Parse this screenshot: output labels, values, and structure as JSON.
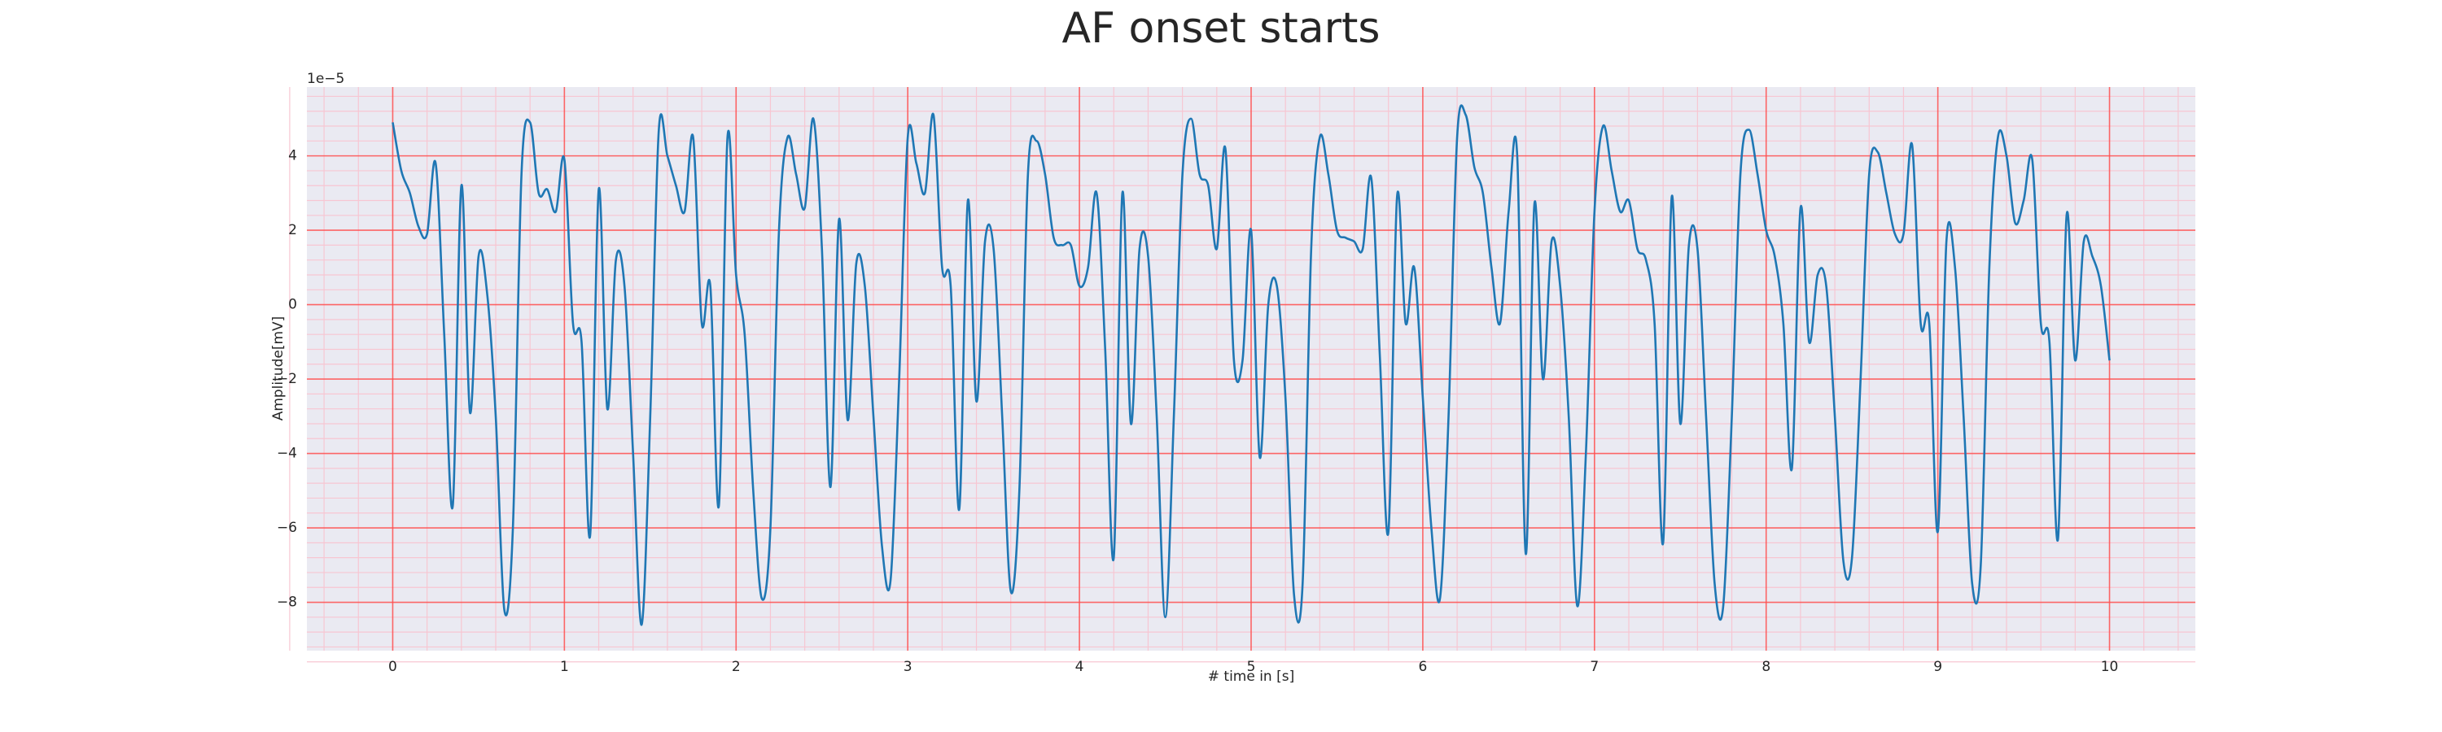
{
  "chart_data": {
    "type": "line",
    "title": "AF onset starts",
    "xlabel": "# time in [s]",
    "ylabel": "Amplitude[mV]",
    "y_offset_label": "1e−5",
    "x": [
      0,
      0.05,
      0.1,
      0.15,
      0.2,
      0.25,
      0.3,
      0.35,
      0.4,
      0.45,
      0.5,
      0.55,
      0.6,
      0.65,
      0.7,
      0.75,
      0.8,
      0.85,
      0.9,
      0.95,
      1,
      1.05,
      1.1,
      1.15,
      1.2,
      1.25,
      1.3,
      1.35,
      1.4,
      1.45,
      1.5,
      1.55,
      1.6,
      1.65,
      1.7,
      1.75,
      1.8,
      1.85,
      1.9,
      1.95,
      2,
      2.05,
      2.1,
      2.15,
      2.2,
      2.25,
      2.3,
      2.35,
      2.4,
      2.45,
      2.5,
      2.55,
      2.6,
      2.65,
      2.7,
      2.75,
      2.8,
      2.85,
      2.9,
      2.95,
      3,
      3.05,
      3.1,
      3.15,
      3.2,
      3.25,
      3.3,
      3.35,
      3.4,
      3.45,
      3.5,
      3.55,
      3.6,
      3.65,
      3.7,
      3.75,
      3.8,
      3.85,
      3.9,
      3.95,
      4,
      4.05,
      4.1,
      4.15,
      4.2,
      4.25,
      4.3,
      4.35,
      4.4,
      4.45,
      4.5,
      4.55,
      4.6,
      4.65,
      4.7,
      4.75,
      4.8,
      4.85,
      4.9,
      4.95,
      5,
      5.05,
      5.1,
      5.15,
      5.2,
      5.25,
      5.3,
      5.35,
      5.4,
      5.45,
      5.5,
      5.55,
      5.6,
      5.65,
      5.7,
      5.75,
      5.8,
      5.85,
      5.9,
      5.95,
      6,
      6.05,
      6.1,
      6.15,
      6.2,
      6.25,
      6.3,
      6.35,
      6.4,
      6.45,
      6.5,
      6.55,
      6.6,
      6.65,
      6.7,
      6.75,
      6.8,
      6.85,
      6.9,
      6.95,
      7,
      7.05,
      7.1,
      7.15,
      7.2,
      7.25,
      7.3,
      7.35,
      7.4,
      7.45,
      7.5,
      7.55,
      7.6,
      7.65,
      7.7,
      7.75,
      7.8,
      7.85,
      7.9,
      7.95,
      8,
      8.05,
      8.1,
      8.15,
      8.2,
      8.25,
      8.3,
      8.35,
      8.4,
      8.45,
      8.5,
      8.55,
      8.6,
      8.65,
      8.7,
      8.75,
      8.8,
      8.85,
      8.9,
      8.95,
      9,
      9.05,
      9.1,
      9.15,
      9.2,
      9.25,
      9.3,
      9.35,
      9.4,
      9.45,
      9.5,
      9.55,
      9.6,
      9.65,
      9.7,
      9.75,
      9.8,
      9.85,
      9.9,
      9.95,
      10
    ],
    "values": [
      4.9,
      3.6,
      3.0,
      2.1,
      1.9,
      3.8,
      -0.8,
      -5.4,
      3.2,
      -2.9,
      1.3,
      0.3,
      -3.0,
      -8.2,
      -6.0,
      3.5,
      4.9,
      3.0,
      3.1,
      2.5,
      3.9,
      -0.5,
      -1.0,
      -6.2,
      3.1,
      -2.8,
      1.2,
      0.5,
      -4.0,
      -8.6,
      -3.0,
      4.7,
      4.0,
      3.2,
      2.5,
      4.5,
      -0.5,
      0.5,
      -5.4,
      4.5,
      0.8,
      -0.8,
      -5.0,
      -7.9,
      -6.0,
      2.0,
      4.5,
      3.5,
      2.6,
      5.0,
      1.5,
      -4.9,
      2.3,
      -3.1,
      1.1,
      0.5,
      -3.0,
      -6.5,
      -7.4,
      -2.0,
      4.5,
      3.8,
      3.0,
      5.1,
      1.0,
      0.5,
      -5.5,
      2.8,
      -2.6,
      1.7,
      1.5,
      -3.0,
      -7.7,
      -5.0,
      3.5,
      4.4,
      3.5,
      1.8,
      1.6,
      1.6,
      0.5,
      1.0,
      3.0,
      -1.2,
      -6.8,
      3.0,
      -3.2,
      1.5,
      1.3,
      -3.0,
      -8.4,
      -3.0,
      3.5,
      5.0,
      3.5,
      3.2,
      1.5,
      4.2,
      -1.5,
      -1.5,
      2.0,
      -4.1,
      0.0,
      0.5,
      -2.5,
      -7.8,
      -7.5,
      1.5,
      4.5,
      3.5,
      2.0,
      1.8,
      1.7,
      1.5,
      3.4,
      -1.4,
      -6.1,
      2.9,
      -0.5,
      1.0,
      -2.5,
      -6.0,
      -7.9,
      -3.0,
      4.5,
      5.1,
      3.7,
      3.0,
      1.0,
      -0.5,
      2.5,
      4.0,
      -6.7,
      2.7,
      -2.0,
      1.7,
      0.5,
      -3.0,
      -8.1,
      -4.0,
      2.5,
      4.8,
      3.6,
      2.5,
      2.8,
      1.5,
      1.2,
      -0.5,
      -6.4,
      2.9,
      -3.2,
      1.6,
      1.5,
      -3.0,
      -7.5,
      -8.1,
      -3.0,
      3.5,
      4.7,
      3.5,
      2.0,
      1.3,
      -0.5,
      -4.4,
      2.6,
      -1.0,
      0.8,
      0.5,
      -3.0,
      -6.9,
      -6.8,
      -2.0,
      3.5,
      4.1,
      3.0,
      1.9,
      1.9,
      4.3,
      -0.5,
      -0.5,
      -6.1,
      1.7,
      1.0,
      -3.0,
      -7.5,
      -7.0,
      1.0,
      4.5,
      4.0,
      2.2,
      2.8,
      3.9,
      -0.5,
      -1.0,
      -6.3,
      2.4,
      -1.5,
      1.7,
      1.3,
      0.5,
      -1.5
    ],
    "color": "#1f77b4",
    "xlim": [
      -0.5,
      10.5
    ],
    "ylim": [
      -9.3,
      5.85
    ],
    "xticks": [
      0,
      1,
      2,
      3,
      4,
      5,
      6,
      7,
      8,
      9,
      10
    ],
    "yticks": [
      {
        "value": -8,
        "label": "−8"
      },
      {
        "value": -6,
        "label": "−6"
      },
      {
        "value": -4,
        "label": "−4"
      },
      {
        "value": -2,
        "label": "−2"
      },
      0,
      2,
      4
    ],
    "grid": true,
    "minor_grid": true,
    "background": "#eaeaf2",
    "grid_color": "#ff4d4d",
    "minor_grid_color": "#f7c6d2"
  }
}
